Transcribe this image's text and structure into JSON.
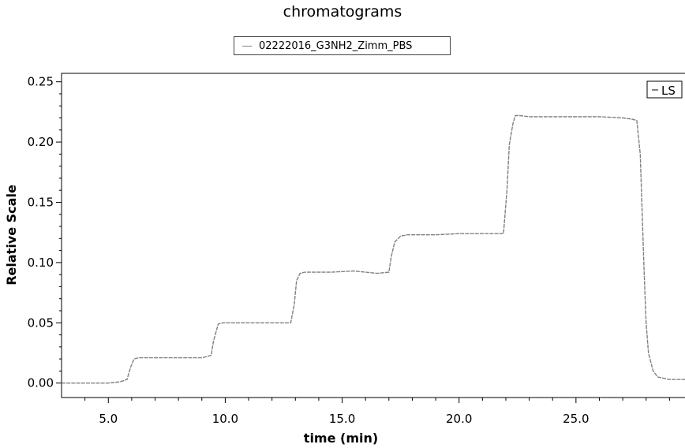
{
  "colors": {
    "series": "#808080",
    "axis": "#000000",
    "legend_border": "#444444"
  },
  "chart_data": {
    "type": "line",
    "title": "chromatograms",
    "top_legend": "02222016_G3NH2_Zimm_PBS",
    "xlabel": "time (min)",
    "ylabel": "Relative Scale",
    "xlim": [
      3.0,
      30.0
    ],
    "ylim": [
      -0.012,
      0.257
    ],
    "xticks": [
      5.0,
      10.0,
      15.0,
      20.0,
      25.0
    ],
    "xtick_labels": [
      "5.0",
      "10.0",
      "15.0",
      "20.0",
      "25.0"
    ],
    "yticks": [
      0.0,
      0.05,
      0.1,
      0.15,
      0.2,
      0.25
    ],
    "ytick_labels": [
      "0.00",
      "0.05",
      "0.10",
      "0.15",
      "0.20",
      "0.25"
    ],
    "grid": false,
    "legend_position": "top-right",
    "series": [
      {
        "name": "LS",
        "x": [
          3.0,
          5.0,
          5.5,
          5.8,
          5.95,
          6.1,
          6.3,
          7.0,
          8.0,
          9.0,
          9.4,
          9.5,
          9.7,
          9.9,
          11.0,
          12.0,
          12.8,
          12.95,
          13.05,
          13.2,
          13.4,
          14.5,
          15.5,
          16.5,
          17.0,
          17.1,
          17.25,
          17.5,
          17.8,
          19.0,
          20.0,
          21.0,
          21.9,
          22.05,
          22.15,
          22.3,
          22.4,
          22.6,
          23.0,
          24.0,
          25.0,
          26.0,
          27.0,
          27.4,
          27.6,
          27.75,
          27.9,
          28.0,
          28.1,
          28.3,
          28.5,
          29.0,
          30.0
        ],
        "y": [
          0.0,
          0.0,
          0.001,
          0.003,
          0.013,
          0.02,
          0.021,
          0.021,
          0.021,
          0.021,
          0.023,
          0.035,
          0.049,
          0.05,
          0.05,
          0.05,
          0.05,
          0.065,
          0.085,
          0.091,
          0.092,
          0.092,
          0.093,
          0.091,
          0.092,
          0.105,
          0.117,
          0.122,
          0.123,
          0.123,
          0.124,
          0.124,
          0.124,
          0.16,
          0.198,
          0.215,
          0.222,
          0.222,
          0.221,
          0.221,
          0.221,
          0.221,
          0.22,
          0.219,
          0.218,
          0.19,
          0.1,
          0.05,
          0.025,
          0.01,
          0.005,
          0.003,
          0.003
        ]
      }
    ]
  }
}
